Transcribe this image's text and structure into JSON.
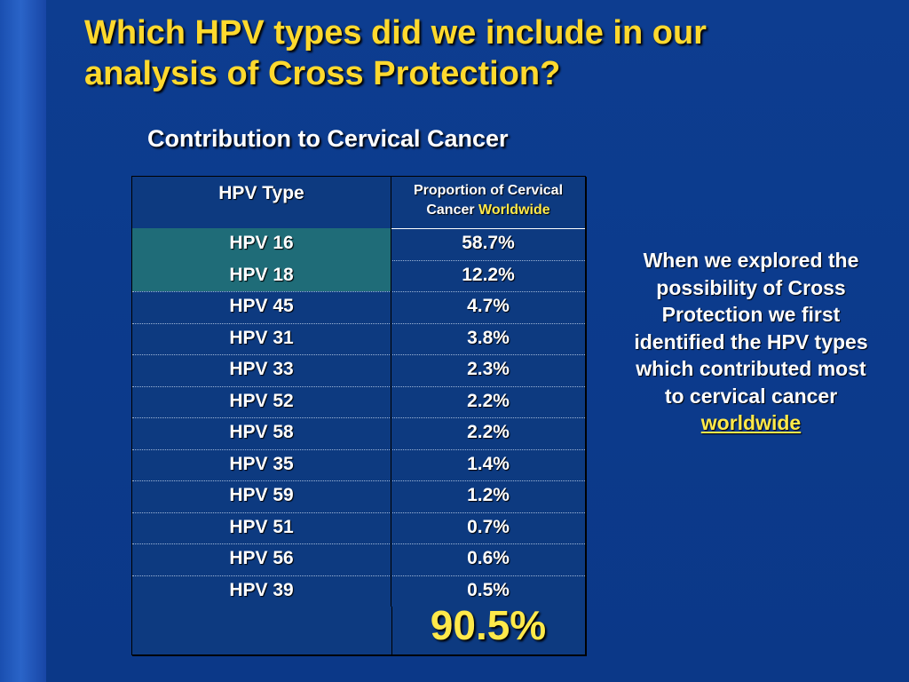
{
  "colors": {
    "background": "#0b3a8c",
    "title": "#ffd92e",
    "highlight_cell": "#1f6c78",
    "accent_yellow": "#ffe94a"
  },
  "slide": {
    "title_line1": "Which HPV types did we include in our",
    "title_line2": "analysis of Cross Protection?",
    "subtitle": "Contribution to Cervical Cancer"
  },
  "table": {
    "header_col1": "HPV Type",
    "header_col2_part1": "Proportion of  Cervical",
    "header_col2_part2": "Cancer",
    "header_col2_part3": "Worldwide",
    "rows": [
      {
        "type": "HPV 16",
        "value": "58.7%",
        "highlighted": true
      },
      {
        "type": "HPV 18",
        "value": "12.2%",
        "highlighted": true
      },
      {
        "type": "HPV 45",
        "value": "4.7%",
        "highlighted": false
      },
      {
        "type": "HPV 31",
        "value": "3.8%",
        "highlighted": false
      },
      {
        "type": "HPV 33",
        "value": "2.3%",
        "highlighted": false
      },
      {
        "type": "HPV 52",
        "value": "2.2%",
        "highlighted": false
      },
      {
        "type": "HPV 58",
        "value": "2.2%",
        "highlighted": false
      },
      {
        "type": "HPV 35",
        "value": "1.4%",
        "highlighted": false
      },
      {
        "type": "HPV 59",
        "value": "1.2%",
        "highlighted": false
      },
      {
        "type": "HPV 51",
        "value": "0.7%",
        "highlighted": false
      },
      {
        "type": "HPV 56",
        "value": "0.6%",
        "highlighted": false
      },
      {
        "type": "HPV 39",
        "value": "0.5%",
        "highlighted": false
      }
    ],
    "total": "90.5%"
  },
  "side_note": {
    "line1": "When we explored the",
    "line2": "possibility of Cross",
    "line3": "Protection we first",
    "line4": "identified the HPV types",
    "line5": "which contributed most",
    "line6": "to cervical cancer",
    "line7": "worldwide"
  }
}
